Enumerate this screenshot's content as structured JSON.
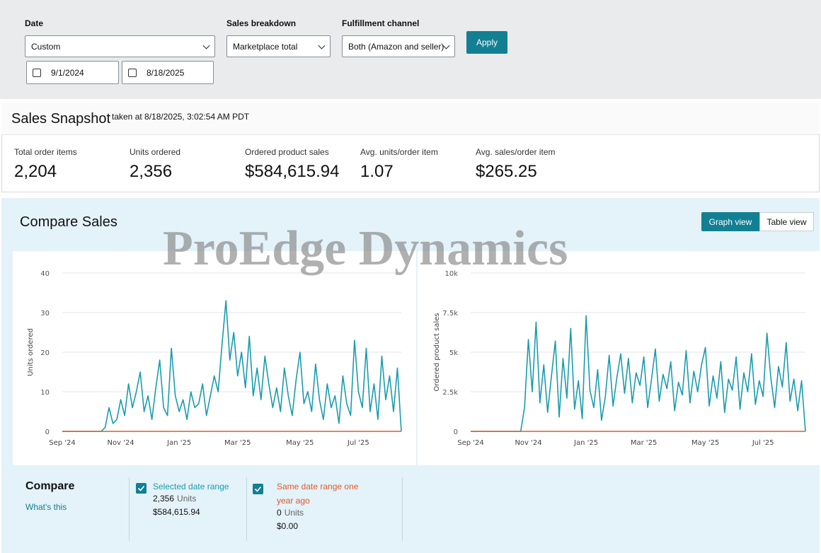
{
  "filters": {
    "date_label": "Date",
    "date_value": "Custom",
    "start_date": "9/1/2024",
    "end_date": "8/18/2025",
    "sales_breakdown_label": "Sales breakdown",
    "sales_breakdown_value": "Marketplace total",
    "fulfillment_label": "Fulfillment channel",
    "fulfillment_value": "Both (Amazon and seller)",
    "apply": "Apply"
  },
  "snapshot": {
    "title": "Sales Snapshot",
    "taken_at": "taken at 8/18/2025, 3:02:54 AM PDT",
    "metrics": [
      {
        "label": "Total order items",
        "value": "2,204"
      },
      {
        "label": "Units ordered",
        "value": "2,356"
      },
      {
        "label": "Ordered product sales",
        "value": "$584,615.94"
      },
      {
        "label": "Avg. units/order item",
        "value": "1.07"
      },
      {
        "label": "Avg. sales/order item",
        "value": "$265.25"
      }
    ]
  },
  "compare": {
    "title": "Compare Sales",
    "graph_view": "Graph view",
    "table_view": "Table view",
    "legend_title": "Compare",
    "whats_this": "What's this",
    "items": [
      {
        "units": "2,356",
        "units_label": "Units",
        "sales": "$584,615.94"
      },
      {
        "units": "0",
        "units_label": "Units",
        "sales": "$0.00"
      }
    ]
  },
  "watermark": "ProEdge Dynamics",
  "chart_data": [
    {
      "type": "line",
      "y_label": "Units ordered",
      "categories": [
        "Sep '24",
        null,
        null,
        null,
        null,
        null,
        null,
        null,
        null,
        null,
        null,
        null,
        null,
        null,
        null,
        "Nov '24",
        null,
        null,
        null,
        null,
        null,
        null,
        null,
        null,
        null,
        null,
        null,
        null,
        null,
        null,
        "Jan '25",
        null,
        null,
        null,
        null,
        null,
        null,
        null,
        null,
        null,
        null,
        null,
        null,
        null,
        null,
        "Mar '25",
        null,
        null,
        null,
        null,
        null,
        null,
        null,
        null,
        null,
        null,
        null,
        null,
        null,
        null,
        null,
        "May '25",
        null,
        null,
        null,
        null,
        null,
        null,
        null,
        null,
        null,
        null,
        null,
        null,
        null,
        null,
        "Jul '25",
        null,
        null,
        null,
        null,
        null,
        null,
        null,
        null,
        null,
        null,
        null
      ],
      "series": [
        {
          "name": "Selected date range",
          "color": "#1a9cad",
          "values": [
            0,
            0,
            0,
            0,
            0,
            0,
            0,
            0,
            0,
            0,
            0,
            1,
            6,
            2,
            3,
            8,
            4,
            12,
            6,
            10,
            15,
            5,
            9,
            3,
            11,
            18,
            6,
            4,
            21,
            9,
            5,
            8,
            3,
            10,
            6,
            7,
            12,
            4,
            9,
            14,
            10,
            22,
            33,
            18,
            25,
            14,
            20,
            11,
            24,
            9,
            16,
            8,
            19,
            12,
            6,
            11,
            5,
            16,
            9,
            4,
            13,
            20,
            7,
            10,
            5,
            17,
            8,
            3,
            12,
            6,
            9,
            2,
            14,
            7,
            4,
            23,
            10,
            6,
            21,
            5,
            12,
            3,
            19,
            8,
            14,
            5,
            16,
            0
          ]
        },
        {
          "name": "Same date range one year ago",
          "color": "#e0592a",
          "values": [
            0,
            0,
            0,
            0,
            0,
            0,
            0,
            0,
            0,
            0,
            0,
            0,
            0,
            0,
            0,
            0,
            0,
            0,
            0,
            0,
            0,
            0,
            0,
            0,
            0,
            0,
            0,
            0,
            0,
            0,
            0,
            0,
            0,
            0,
            0,
            0,
            0,
            0,
            0,
            0,
            0,
            0,
            0,
            0,
            0,
            0,
            0,
            0,
            0,
            0,
            0,
            0,
            0,
            0,
            0,
            0,
            0,
            0,
            0,
            0,
            0,
            0,
            0,
            0,
            0,
            0,
            0,
            0,
            0,
            0,
            0,
            0,
            0,
            0,
            0,
            0,
            0,
            0,
            0,
            0,
            0,
            0,
            0,
            0,
            0,
            0,
            0,
            0
          ]
        }
      ],
      "ylim": [
        0,
        40
      ],
      "yticks": [
        0,
        10,
        20,
        30,
        40
      ],
      "grid": true
    },
    {
      "type": "line",
      "y_label": "Ordered product sales",
      "categories": [
        "Sep '24",
        null,
        null,
        null,
        null,
        null,
        null,
        null,
        null,
        null,
        null,
        null,
        null,
        null,
        null,
        "Nov '24",
        null,
        null,
        null,
        null,
        null,
        null,
        null,
        null,
        null,
        null,
        null,
        null,
        null,
        null,
        "Jan '25",
        null,
        null,
        null,
        null,
        null,
        null,
        null,
        null,
        null,
        null,
        null,
        null,
        null,
        null,
        "Mar '25",
        null,
        null,
        null,
        null,
        null,
        null,
        null,
        null,
        null,
        null,
        null,
        null,
        null,
        null,
        null,
        "May '25",
        null,
        null,
        null,
        null,
        null,
        null,
        null,
        null,
        null,
        null,
        null,
        null,
        null,
        null,
        "Jul '25",
        null,
        null,
        null,
        null,
        null,
        null,
        null,
        null,
        null,
        null,
        null
      ],
      "series": [
        {
          "name": "Selected date range",
          "color": "#1a9cad",
          "values": [
            0,
            0,
            0,
            0,
            0,
            0,
            0,
            0,
            0,
            0,
            0,
            0,
            0,
            0,
            1500,
            5800,
            2500,
            6900,
            1800,
            4200,
            1200,
            3500,
            5700,
            900,
            4600,
            2100,
            6500,
            1400,
            3200,
            800,
            7300,
            2600,
            1500,
            3900,
            700,
            2200,
            4800,
            1600,
            3400,
            4900,
            2400,
            4600,
            1800,
            3700,
            2900,
            4700,
            1500,
            3300,
            5200,
            1900,
            3600,
            2700,
            4400,
            1300,
            3100,
            2300,
            5100,
            1800,
            3800,
            2500,
            4200,
            5300,
            1600,
            3500,
            2100,
            4400,
            1200,
            3300,
            2600,
            4700,
            1400,
            3700,
            2500,
            4900,
            1700,
            3200,
            2200,
            6200,
            3400,
            1500,
            4100,
            2800,
            5600,
            1900,
            3300,
            1300,
            3200,
            0
          ]
        },
        {
          "name": "Same date range one year ago",
          "color": "#e0592a",
          "values": [
            0,
            0,
            0,
            0,
            0,
            0,
            0,
            0,
            0,
            0,
            0,
            0,
            0,
            0,
            0,
            0,
            0,
            0,
            0,
            0,
            0,
            0,
            0,
            0,
            0,
            0,
            0,
            0,
            0,
            0,
            0,
            0,
            0,
            0,
            0,
            0,
            0,
            0,
            0,
            0,
            0,
            0,
            0,
            0,
            0,
            0,
            0,
            0,
            0,
            0,
            0,
            0,
            0,
            0,
            0,
            0,
            0,
            0,
            0,
            0,
            0,
            0,
            0,
            0,
            0,
            0,
            0,
            0,
            0,
            0,
            0,
            0,
            0,
            0,
            0,
            0,
            0,
            0,
            0,
            0,
            0,
            0,
            0,
            0,
            0,
            0,
            0,
            0
          ]
        }
      ],
      "ylim": [
        0,
        10000
      ],
      "yticks": [
        0,
        {
          "value": 2500,
          "label": "2.5k"
        },
        {
          "value": 5000,
          "label": "5k"
        },
        {
          "value": 7500,
          "label": "7.5k"
        },
        {
          "value": 10000,
          "label": "10k"
        }
      ],
      "grid": true
    }
  ]
}
